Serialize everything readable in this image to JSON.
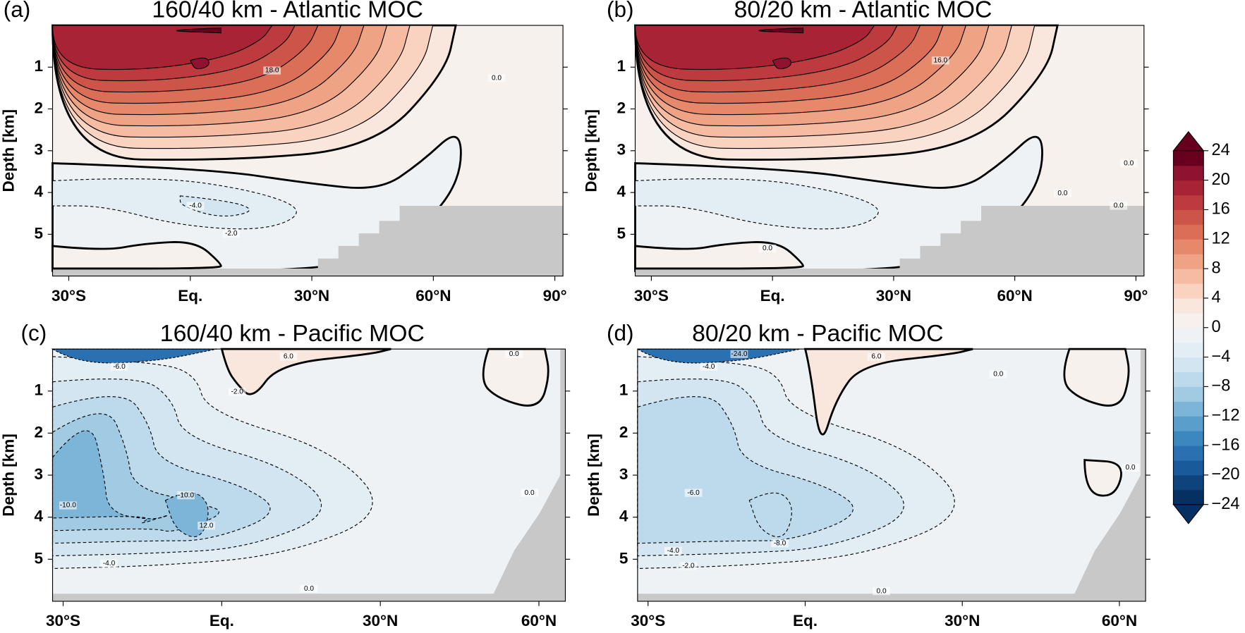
{
  "chart_data": [
    {
      "type": "contour",
      "label": "(a)",
      "title": "160/40 km - Atlantic MOC",
      "ylabel": "Depth [km]",
      "xlim": [
        -34,
        92
      ],
      "ylim": [
        6,
        0
      ],
      "xticks": [
        {
          "value": -30,
          "label": "30°S"
        },
        {
          "value": 0,
          "label": "Eq."
        },
        {
          "value": 30,
          "label": "30°N"
        },
        {
          "value": 60,
          "label": "60°N"
        },
        {
          "value": 90,
          "label": "90°"
        }
      ],
      "yticks": [
        1,
        2,
        3,
        4,
        5
      ],
      "contour_labels": [
        "18.0",
        "0.0",
        "-4.0",
        "-2.0"
      ]
    },
    {
      "type": "contour",
      "label": "(b)",
      "title": "80/20 km - Atlantic MOC",
      "ylabel": "Depth [km]",
      "xlim": [
        -34,
        92
      ],
      "ylim": [
        6,
        0
      ],
      "xticks": [
        {
          "value": -30,
          "label": "30°S"
        },
        {
          "value": 0,
          "label": "Eq."
        },
        {
          "value": 30,
          "label": "30°N"
        },
        {
          "value": 60,
          "label": "60°N"
        },
        {
          "value": 90,
          "label": "90°"
        }
      ],
      "yticks": [
        1,
        2,
        3,
        4,
        5
      ],
      "contour_labels": [
        "16.0",
        "0.0",
        "0.0",
        "0.0",
        "0.0"
      ]
    },
    {
      "type": "contour",
      "label": "(c)",
      "title": "160/40 km - Pacific MOC",
      "ylabel": "Depth [km]",
      "xlim": [
        -32,
        65
      ],
      "ylim": [
        6,
        0
      ],
      "xticks": [
        {
          "value": -30,
          "label": "30°S"
        },
        {
          "value": 0,
          "label": "Eq."
        },
        {
          "value": 30,
          "label": "30°N"
        },
        {
          "value": 60,
          "label": "60°N"
        }
      ],
      "yticks": [
        1,
        2,
        3,
        4,
        5
      ],
      "contour_labels": [
        "-6.0",
        "6.0",
        "-2.0",
        "0.0",
        "-10.0",
        "-10.0",
        "12.0",
        "-4.0",
        "0.0",
        "0.0"
      ]
    },
    {
      "type": "contour",
      "label": "(d)",
      "title": "80/20 km - Pacific MOC",
      "ylabel": "Depth [km]",
      "xlim": [
        -32,
        65
      ],
      "ylim": [
        6,
        0
      ],
      "xticks": [
        {
          "value": -30,
          "label": "30°S"
        },
        {
          "value": 0,
          "label": "Eq."
        },
        {
          "value": 30,
          "label": "30°N"
        },
        {
          "value": 60,
          "label": "60°N"
        }
      ],
      "yticks": [
        1,
        2,
        3,
        4,
        5
      ],
      "contour_labels": [
        "-24.0",
        "-4.0",
        "6.0",
        "0.0",
        "-6.0",
        "-8.0",
        "-4.0",
        "-2.0",
        "0.0",
        "0.0"
      ]
    },
    {
      "type": "colorbar",
      "clim": [
        -24,
        24
      ],
      "levels": [
        -24,
        -22,
        -20,
        -18,
        -16,
        -14,
        -12,
        -10,
        -8,
        -6,
        -4,
        -2,
        0,
        2,
        4,
        6,
        8,
        10,
        12,
        14,
        16,
        18,
        20,
        22,
        24
      ],
      "colors": [
        "#053061",
        "#0f437c",
        "#1b5a9a",
        "#2a71b1",
        "#3d87bf",
        "#5a9fcb",
        "#7db5d8",
        "#a0cbe3",
        "#bcdaeb",
        "#d2e5f0",
        "#e2edf4",
        "#eef2f5",
        "#f6f1ed",
        "#f9e6dc",
        "#f9d2c0",
        "#f5bca2",
        "#efa385",
        "#e6896b",
        "#da6e56",
        "#cc5448",
        "#bd3a3e",
        "#a82435",
        "#8e1330",
        "#67001f"
      ],
      "ticks": [
        24,
        20,
        16,
        12,
        8,
        4,
        0,
        {
          "value": -4,
          "label": "−4"
        },
        {
          "value": -8,
          "label": "−8"
        },
        {
          "value": -12,
          "label": "−12"
        },
        {
          "value": -16,
          "label": "−16"
        },
        {
          "value": -20,
          "label": "−20"
        },
        {
          "value": -24,
          "label": "−24"
        }
      ]
    }
  ]
}
